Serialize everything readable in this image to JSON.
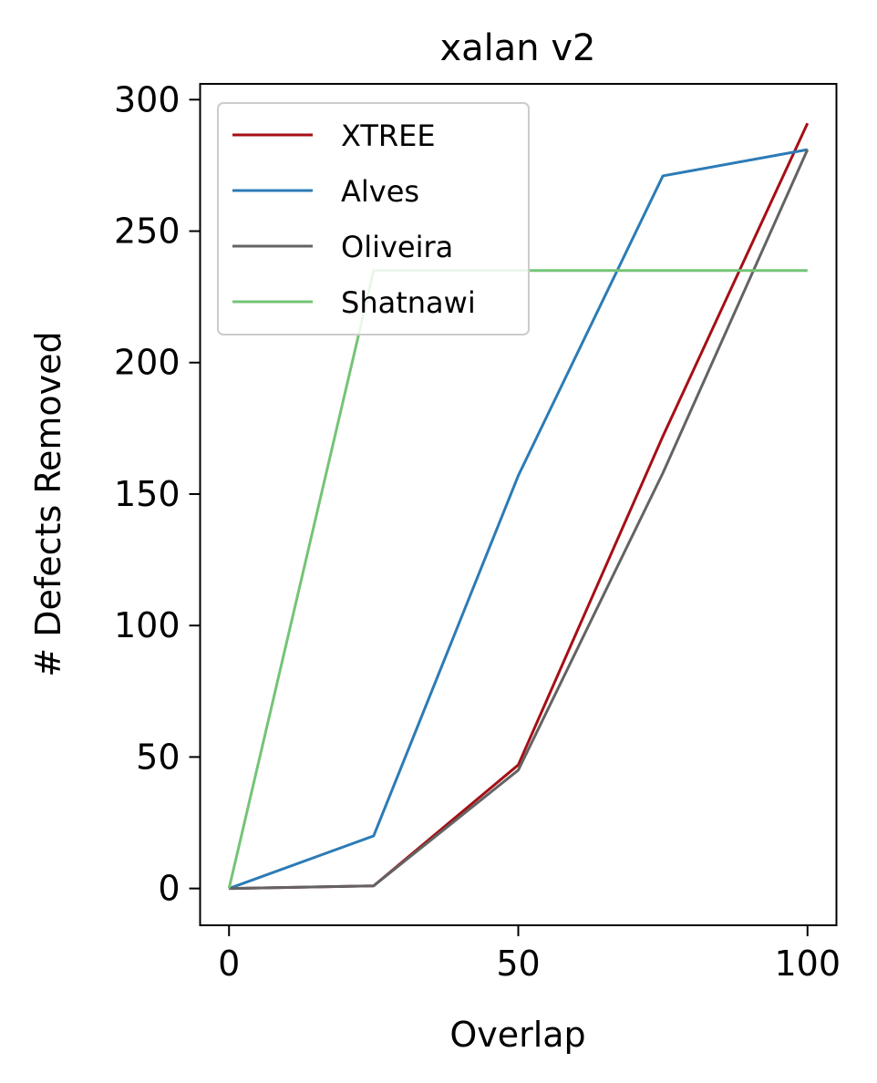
{
  "chart_data": {
    "type": "line",
    "title": "xalan v2",
    "xlabel": "Overlap",
    "ylabel": "# Defects Removed",
    "xlim": [
      -5,
      105
    ],
    "ylim": [
      -14,
      306
    ],
    "xticks": [
      0,
      50,
      100
    ],
    "yticks": [
      0,
      50,
      100,
      150,
      200,
      250,
      300
    ],
    "grid": false,
    "legend_position": "top-left",
    "x": [
      0,
      25,
      50,
      75,
      100
    ],
    "series": [
      {
        "name": "XTREE",
        "color": "#a50f15",
        "values": [
          0,
          1,
          47,
          172,
          291
        ]
      },
      {
        "name": "Alves",
        "color": "#2c7bb6",
        "values": [
          0,
          20,
          157,
          271,
          281
        ]
      },
      {
        "name": "Oliveira",
        "color": "#636363",
        "values": [
          0,
          1,
          45,
          158,
          281
        ]
      },
      {
        "name": "Shatnawi",
        "color": "#74c476",
        "values": [
          0,
          235,
          235,
          235,
          235
        ]
      }
    ]
  }
}
